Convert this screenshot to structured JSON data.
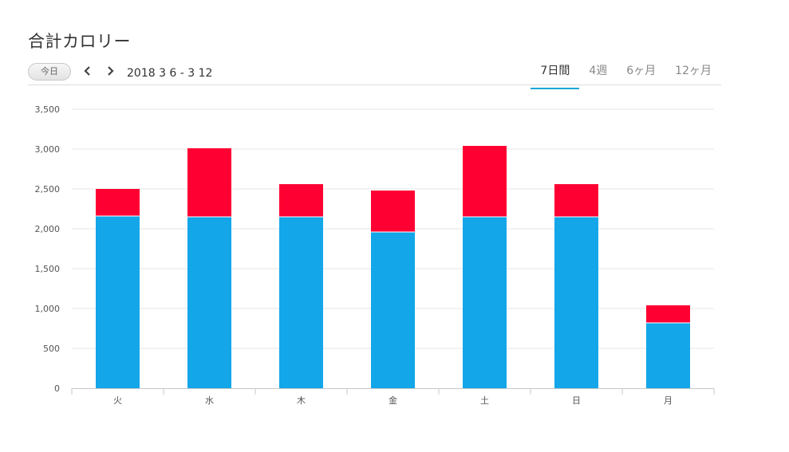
{
  "page": {
    "title": "合計カロリー"
  },
  "toolbar": {
    "today_label": "今日",
    "prev_icon": "chevron-left-icon",
    "next_icon": "chevron-right-icon",
    "date_range": "2018 3 6 - 3 12",
    "tabs": [
      {
        "label": "7日間",
        "active": true
      },
      {
        "label": "4週",
        "active": false
      },
      {
        "label": "6ヶ月",
        "active": false
      },
      {
        "label": "12ヶ月",
        "active": false
      }
    ]
  },
  "colors": {
    "base": "#13a6e9",
    "top": "#ff0033",
    "grid": "#e4e4e4",
    "accent": "#1aa7d8"
  },
  "chart_data": {
    "type": "bar",
    "stacked": true,
    "title": "合計カロリー",
    "categories": [
      "火",
      "水",
      "木",
      "金",
      "土",
      "日",
      "月"
    ],
    "series": [
      {
        "color": "#13a6e9",
        "values": [
          2160,
          2150,
          2150,
          1960,
          2150,
          2150,
          820
        ]
      },
      {
        "color": "#ff0033",
        "values": [
          340,
          860,
          410,
          520,
          890,
          410,
          220
        ]
      }
    ],
    "ylim": [
      0,
      3500
    ],
    "yticks": [
      0,
      500,
      1000,
      1500,
      2000,
      2500,
      3000,
      3500
    ],
    "ytick_labels": [
      "0",
      "500",
      "1,000",
      "1,500",
      "2,000",
      "2,500",
      "3,000",
      "3,500"
    ],
    "grid": true,
    "legend": "none"
  }
}
